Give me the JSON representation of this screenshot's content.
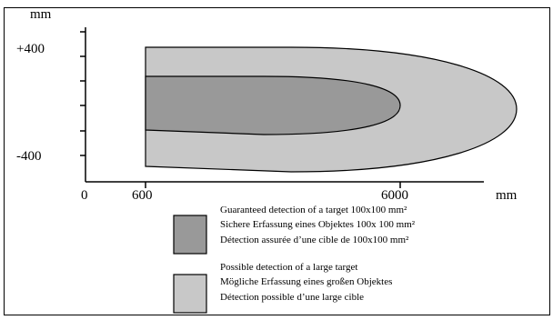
{
  "diagram": {
    "y_unit": "mm",
    "x_unit": "mm",
    "y_ticks": [
      "+400",
      "-400"
    ],
    "x_ticks": [
      "0",
      "600",
      "6000"
    ],
    "colors": {
      "guaranteed_zone": "#999999",
      "possible_zone": "#c8c8c8",
      "stroke": "#000000"
    }
  },
  "legend": {
    "guaranteed": {
      "lines": [
        "Guaranteed detection of a target 100x100 mm²",
        "Sichere Erfassung eines Objektes 100x 100 mm²",
        "Détection assurée d’une cible de 100x100 mm²"
      ]
    },
    "possible": {
      "lines": [
        "Possible detection of a large target",
        "Mögliche Erfassung eines  großen Objektes",
        "Détection possible d’une large cible"
      ]
    }
  }
}
